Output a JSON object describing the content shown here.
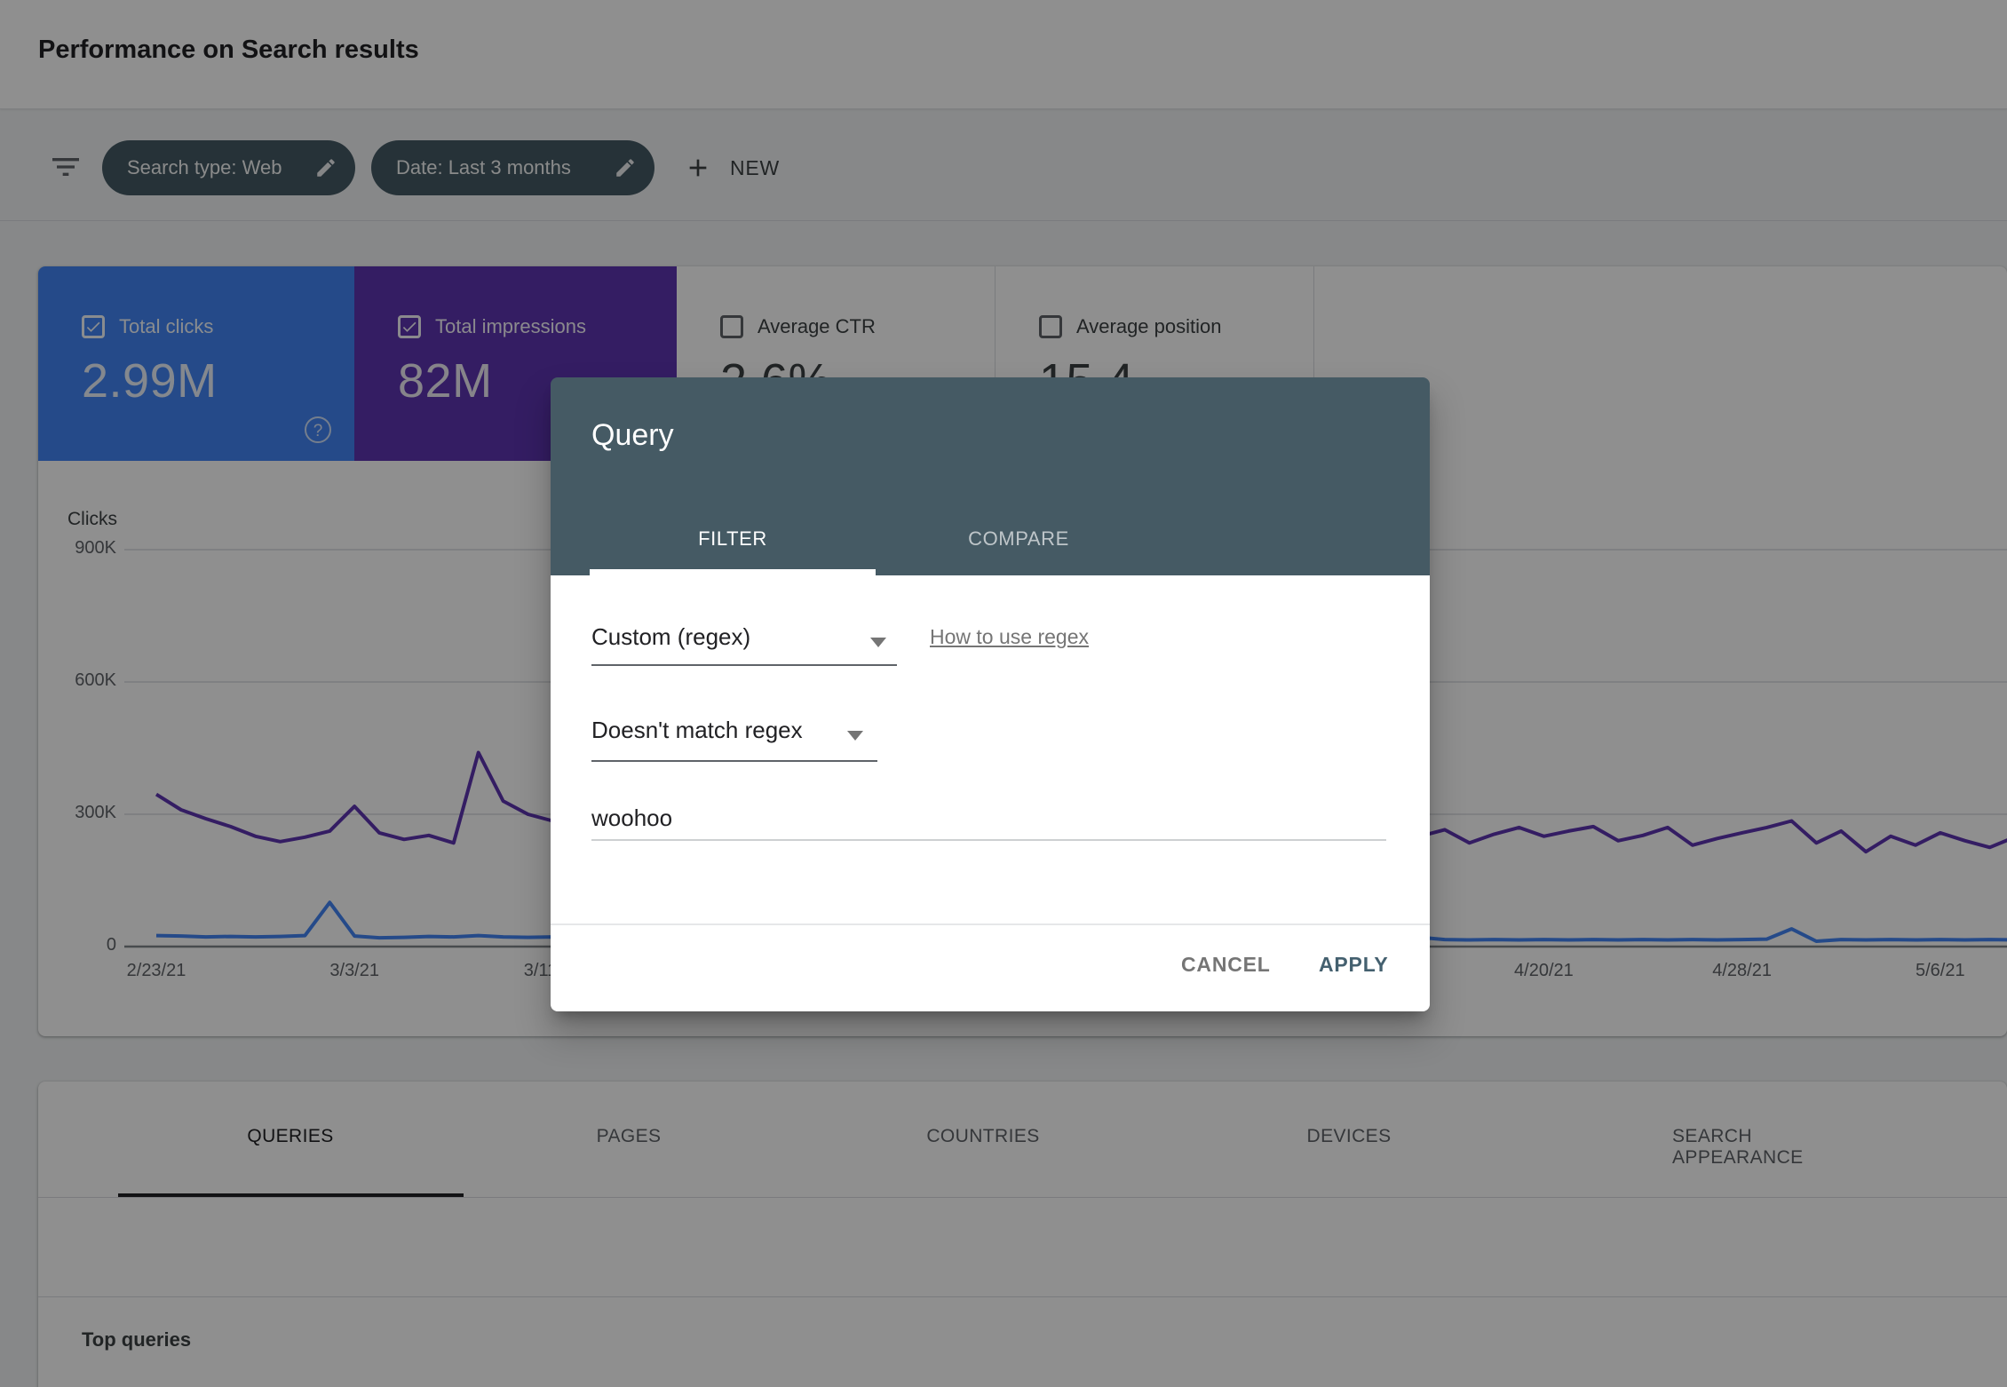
{
  "header": {
    "title": "Performance on Search results"
  },
  "filter_bar": {
    "filter_icon": "filter-list-icon",
    "chips": [
      {
        "label": "Search type: Web",
        "edit_icon": "pencil-icon"
      },
      {
        "label": "Date: Last 3 months",
        "edit_icon": "pencil-icon"
      }
    ],
    "new_button_label": "NEW",
    "new_button_icon": "plus-icon"
  },
  "metrics": {
    "cards": [
      {
        "label": "Total clicks",
        "value": "2.99M",
        "checked": true,
        "color": "#4285f4",
        "help_icon": "question-circle-icon"
      },
      {
        "label": "Total impressions",
        "value": "82M",
        "checked": true,
        "color": "#5e35b1"
      },
      {
        "label": "Average CTR",
        "value": "2.6%",
        "checked": false
      },
      {
        "label": "Average position",
        "value": "15.4",
        "checked": false
      }
    ]
  },
  "chart_data": {
    "type": "line",
    "ylabel": "Clicks",
    "grid": true,
    "legend_position": "none",
    "y_ticks": [
      {
        "label": "900K",
        "value_K": 900
      },
      {
        "label": "600K",
        "value_K": 600
      },
      {
        "label": "300K",
        "value_K": 300
      },
      {
        "label": "0",
        "value_K": 0
      }
    ],
    "ylim_K": [
      0,
      900
    ],
    "x_tick_labels": [
      {
        "label": "2/23/21",
        "day": 0
      },
      {
        "label": "3/3/21",
        "day": 8
      },
      {
        "label": "3/11/21",
        "day": 16
      },
      {
        "label": "4/20/21",
        "day": 56
      },
      {
        "label": "4/28/21",
        "day": 64
      },
      {
        "label": "5/6/21",
        "day": 72
      }
    ],
    "series": [
      {
        "name": "Total clicks",
        "color": "#4285f4",
        "values_K": [
          25,
          24,
          22,
          23,
          22,
          23,
          25,
          100,
          24,
          20,
          21,
          23,
          22,
          25,
          22,
          21,
          22,
          21,
          20,
          22,
          23,
          21,
          20,
          22,
          21,
          20,
          22,
          21,
          23,
          20,
          21,
          22,
          20,
          21,
          22,
          20,
          21,
          22,
          21,
          20,
          22,
          21,
          20,
          21,
          22,
          20,
          21,
          20,
          22,
          21,
          20,
          21,
          16,
          15,
          16,
          15,
          16,
          15,
          16,
          15,
          16,
          15,
          16,
          15,
          16,
          17,
          40,
          12,
          16,
          15,
          16,
          15,
          16,
          15,
          16,
          15
        ]
      },
      {
        "name": "Total impressions",
        "color": "#5e35b1",
        "note": "plotted against hidden right axis; values given on left-axis scale",
        "values_K": [
          345,
          310,
          290,
          272,
          250,
          238,
          248,
          262,
          318,
          258,
          243,
          252,
          235,
          440,
          330,
          300,
          285,
          280,
          260,
          250,
          270,
          255,
          240,
          260,
          275,
          250,
          265,
          255,
          245,
          260,
          250,
          270,
          260,
          245,
          255,
          265,
          250,
          260,
          270,
          255,
          245,
          260,
          250,
          265,
          255,
          240,
          260,
          250,
          245,
          255,
          260,
          250,
          265,
          235,
          255,
          270,
          250,
          262,
          272,
          240,
          252,
          270,
          230,
          245,
          258,
          270,
          285,
          235,
          262,
          215,
          250,
          230,
          258,
          240,
          225,
          248
        ]
      }
    ]
  },
  "bottom_tabs": [
    {
      "label": "QUERIES",
      "active": true
    },
    {
      "label": "PAGES",
      "active": false
    },
    {
      "label": "COUNTRIES",
      "active": false
    },
    {
      "label": "DEVICES",
      "active": false
    },
    {
      "label": "SEARCH APPEARANCE",
      "active": false
    }
  ],
  "table": {
    "header": "Top queries"
  },
  "dialog": {
    "title": "Query",
    "tabs": [
      {
        "label": "FILTER",
        "active": true
      },
      {
        "label": "COMPARE",
        "active": false
      }
    ],
    "filter_type_select": "Custom (regex)",
    "help_link": "How to use regex",
    "match_type_select": "Doesn't match regex",
    "query_input_value": "woohoo",
    "cancel_label": "CANCEL",
    "apply_label": "APPLY",
    "header_color": "#455a64",
    "apply_color": "#44606f"
  }
}
